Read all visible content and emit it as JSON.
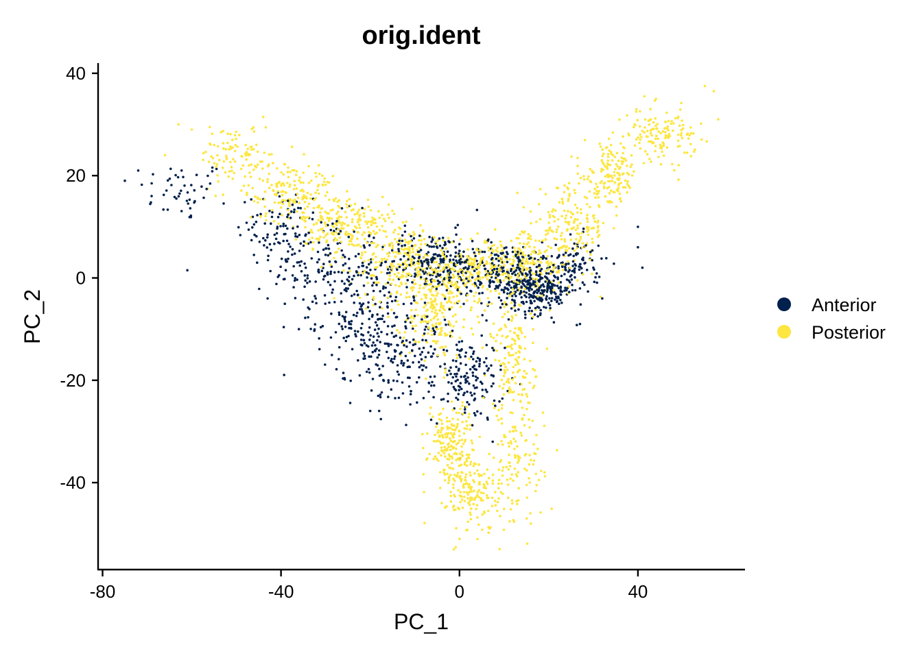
{
  "chart_data": {
    "type": "scatter",
    "title": "orig.ident",
    "xlabel": "PC_1",
    "ylabel": "PC_2",
    "xlim": [
      -81,
      64
    ],
    "ylim": [
      -57,
      42
    ],
    "x_ticks": [
      -80,
      -40,
      0,
      40
    ],
    "y_ticks": [
      -40,
      -20,
      0,
      20,
      40
    ],
    "grid": false,
    "legend": "right",
    "series": [
      {
        "name": "Anterior",
        "color": "#00204D",
        "clusters": [
          {
            "cx": -62,
            "cy": 17,
            "sx": 5,
            "sy": 3,
            "n": 45
          },
          {
            "cx": -40,
            "cy": 10,
            "sx": 5,
            "sy": 4,
            "n": 90
          },
          {
            "cx": -30,
            "cy": 2,
            "sx": 6,
            "sy": 5,
            "n": 150
          },
          {
            "cx": -22,
            "cy": -8,
            "sx": 5,
            "sy": 5,
            "n": 150
          },
          {
            "cx": -12,
            "cy": -15,
            "sx": 6,
            "sy": 5,
            "n": 180
          },
          {
            "cx": 2,
            "cy": -20,
            "sx": 4,
            "sy": 4,
            "n": 140
          },
          {
            "cx": -6,
            "cy": 3,
            "sx": 6,
            "sy": 3,
            "n": 240
          },
          {
            "cx": 10,
            "cy": 1,
            "sx": 6,
            "sy": 3,
            "n": 220
          },
          {
            "cx": 18,
            "cy": -2,
            "sx": 4,
            "sy": 2.5,
            "n": 260
          },
          {
            "cx": 26,
            "cy": 3,
            "sx": 3,
            "sy": 2.5,
            "n": 80
          }
        ],
        "points": [
          [
            -75,
            19
          ],
          [
            -72,
            21
          ],
          [
            -69,
            16
          ],
          [
            -61,
            1.5
          ],
          [
            -43,
            -4
          ],
          [
            -36,
            -10
          ],
          [
            -20,
            -26
          ],
          [
            -18,
            -26
          ],
          [
            8,
            -25
          ],
          [
            27,
            -9
          ],
          [
            30,
            2
          ],
          [
            32,
            -4
          ],
          [
            40,
            6
          ],
          [
            40,
            10
          ],
          [
            41,
            2
          ]
        ]
      },
      {
        "name": "Posterior",
        "color": "#FDE640",
        "clusters": [
          {
            "cx": -50,
            "cy": 24,
            "sx": 4,
            "sy": 3,
            "n": 90
          },
          {
            "cx": -38,
            "cy": 17,
            "sx": 5,
            "sy": 3,
            "n": 180
          },
          {
            "cx": -25,
            "cy": 10,
            "sx": 5,
            "sy": 3,
            "n": 200
          },
          {
            "cx": -12,
            "cy": 3,
            "sx": 6,
            "sy": 4,
            "n": 240
          },
          {
            "cx": -5,
            "cy": -7,
            "sx": 4,
            "sy": 5,
            "n": 200
          },
          {
            "cx": 2,
            "cy": 1,
            "sx": 7,
            "sy": 3,
            "n": 220
          },
          {
            "cx": 15,
            "cy": 3,
            "sx": 6,
            "sy": 3,
            "n": 200
          },
          {
            "cx": 25,
            "cy": 10,
            "sx": 4,
            "sy": 4,
            "n": 160
          },
          {
            "cx": 34,
            "cy": 20,
            "sx": 3,
            "sy": 3,
            "n": 140
          },
          {
            "cx": 45,
            "cy": 28,
            "sx": 4,
            "sy": 2.5,
            "n": 140
          },
          {
            "cx": -2,
            "cy": -32,
            "sx": 2.5,
            "sy": 4,
            "n": 180
          },
          {
            "cx": 3,
            "cy": -42,
            "sx": 3,
            "sy": 4,
            "n": 160
          },
          {
            "cx": 12,
            "cy": -16,
            "sx": 2.5,
            "sy": 6,
            "n": 160
          },
          {
            "cx": 13,
            "cy": -37,
            "sx": 3,
            "sy": 6,
            "n": 120
          }
        ],
        "points": [
          [
            -63,
            30
          ],
          [
            -60,
            29
          ],
          [
            -56,
            29.5
          ],
          [
            -66,
            24
          ],
          [
            57,
            36.5
          ],
          [
            55,
            37.5
          ],
          [
            58,
            31
          ],
          [
            9,
            -53
          ],
          [
            0,
            -51
          ],
          [
            16,
            -48
          ]
        ]
      }
    ]
  }
}
